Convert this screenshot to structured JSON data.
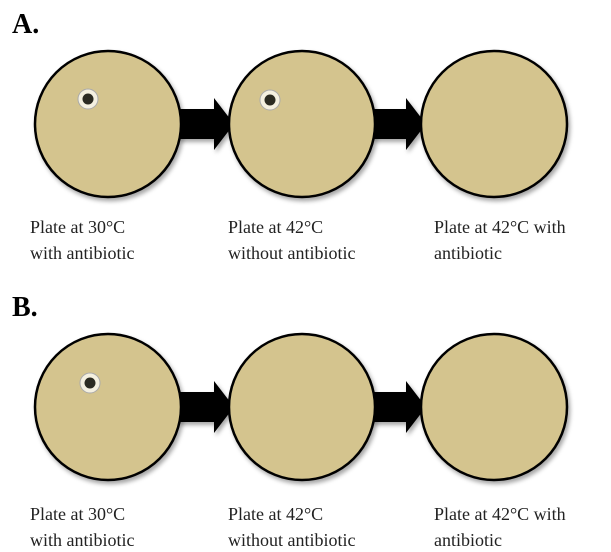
{
  "panels": [
    {
      "label": "A.",
      "plates": [
        {
          "caption": [
            "Plate at 30°C",
            "with antibiotic"
          ]
        },
        {
          "caption": [
            "Plate at 42°C",
            "without antibiotic"
          ]
        },
        {
          "caption": [
            "Plate at 42°C with",
            "antibiotic"
          ]
        }
      ]
    },
    {
      "label": "B.",
      "plates": [
        {
          "caption": [
            "Plate at 30°C",
            "with antibiotic"
          ]
        },
        {
          "caption": [
            "Plate at 42°C",
            "without antibiotic"
          ]
        },
        {
          "caption": [
            "Plate at 42°C with",
            "antibiotic"
          ]
        }
      ]
    }
  ]
}
